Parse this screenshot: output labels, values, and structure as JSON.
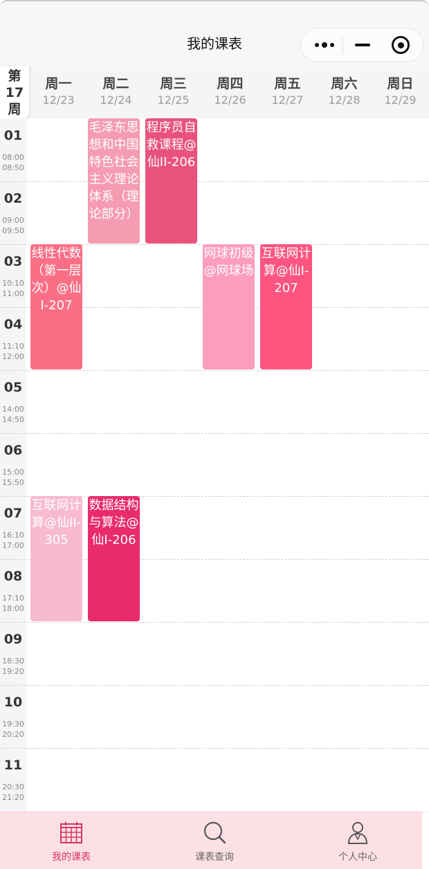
{
  "nav": {
    "title": "我的课表"
  },
  "header": {
    "week": [
      "第",
      "17",
      "周"
    ],
    "days": [
      {
        "name": "周一",
        "date": "12/23"
      },
      {
        "name": "周二",
        "date": "12/24"
      },
      {
        "name": "周三",
        "date": "12/25"
      },
      {
        "name": "周四",
        "date": "12/26"
      },
      {
        "name": "周五",
        "date": "12/27"
      },
      {
        "name": "周六",
        "date": "12/28"
      },
      {
        "name": "周日",
        "date": "12/29"
      }
    ]
  },
  "slots": [
    {
      "num": "01",
      "start": "08:00",
      "end": "08:50"
    },
    {
      "num": "02",
      "start": "09:00",
      "end": "09:50"
    },
    {
      "num": "03",
      "start": "10:10",
      "end": "11:00"
    },
    {
      "num": "04",
      "start": "11:10",
      "end": "12:00"
    },
    {
      "num": "05",
      "start": "14:00",
      "end": "14:50"
    },
    {
      "num": "06",
      "start": "15:00",
      "end": "15:50"
    },
    {
      "num": "07",
      "start": "16:10",
      "end": "17:00"
    },
    {
      "num": "08",
      "start": "17:10",
      "end": "18:00"
    },
    {
      "num": "09",
      "start": "18:30",
      "end": "19:20"
    },
    {
      "num": "10",
      "start": "19:30",
      "end": "20:20"
    },
    {
      "num": "11",
      "start": "20:30",
      "end": "21:20"
    }
  ],
  "courses": [
    {
      "text": "毛泽东思想和中国特色社会主义理论体系（理论部分）",
      "day": 2,
      "start_slot": 1,
      "length": 2,
      "color": "#f59bb2"
    },
    {
      "text": "程序员自救课程@仙II-206",
      "day": 3,
      "start_slot": 1,
      "length": 2,
      "color": "#e9527d"
    },
    {
      "text": "线性代数（第一层次）@仙I-207",
      "day": 1,
      "start_slot": 3,
      "length": 2,
      "color": "#fb6f86"
    },
    {
      "text": "网球初级@网球场",
      "day": 4,
      "start_slot": 3,
      "length": 2,
      "color": "#fc9cbe"
    },
    {
      "text": "互联网计算@仙I-207",
      "day": 5,
      "start_slot": 3,
      "length": 2,
      "color": "#fd5580"
    },
    {
      "text": "互联网计算@仙II-305",
      "day": 1,
      "start_slot": 7,
      "length": 2,
      "color": "#f8bad0"
    },
    {
      "text": "数据结构与算法@仙I-206",
      "day": 2,
      "start_slot": 7,
      "length": 2,
      "color": "#e92c69"
    }
  ],
  "tabs": [
    {
      "label": "我的课表",
      "icon": "calendar-grid-icon",
      "active": true
    },
    {
      "label": "课表查询",
      "icon": "search-icon",
      "active": false
    },
    {
      "label": "个人中心",
      "icon": "person-icon",
      "active": false
    }
  ],
  "colors": {
    "accent": "#d4365e",
    "tabbar_bg": "#fde0e6",
    "time_col_bg": "#f4f5f7"
  }
}
